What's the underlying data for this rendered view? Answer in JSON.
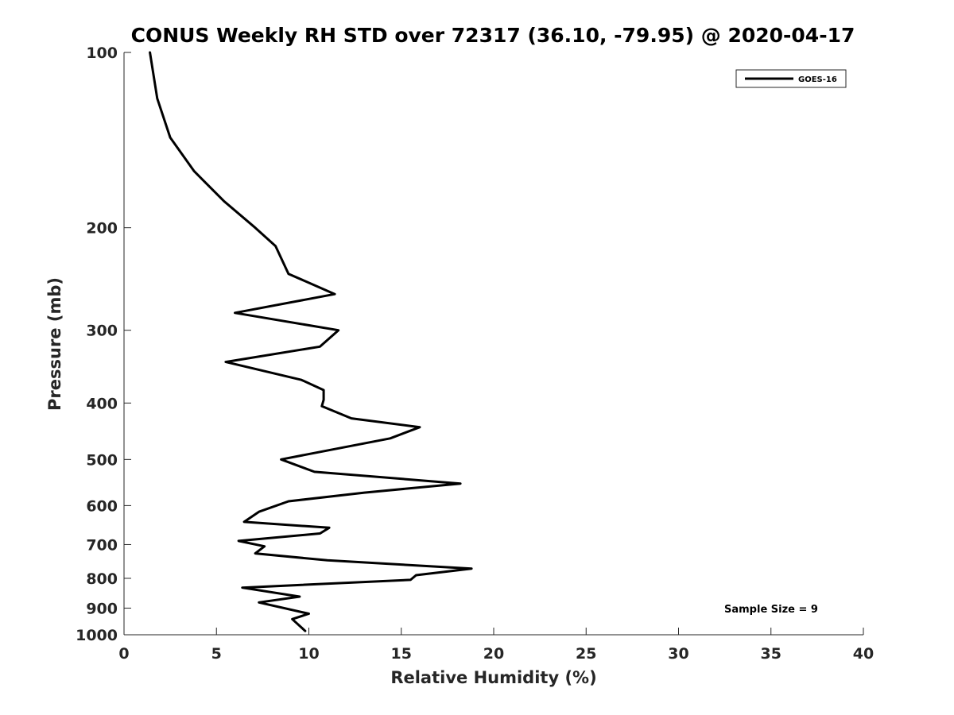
{
  "chart_data": {
    "type": "line",
    "title": "CONUS Weekly RH STD over 72317 (36.10, -79.95) @ 2020-04-17",
    "xlabel": "Relative Humidity (%)",
    "ylabel": "Pressure (mb)",
    "xlim": [
      0,
      40
    ],
    "ylim": [
      100,
      1000
    ],
    "y_scale": "log",
    "y_reversed": true,
    "x_ticks": [
      0,
      5,
      10,
      15,
      20,
      25,
      30,
      35,
      40
    ],
    "y_ticks": [
      100,
      200,
      300,
      400,
      500,
      600,
      700,
      800,
      900,
      1000
    ],
    "grid": false,
    "legend_position": "top-right",
    "annotation": "Sample Size = 9",
    "series": [
      {
        "name": "GOES-16",
        "color": "#000000",
        "x": [
          1.4,
          1.8,
          2.5,
          3.8,
          5.4,
          7.1,
          8.2,
          8.9,
          11.4,
          6.0,
          11.6,
          10.6,
          5.5,
          9.6,
          10.8,
          10.8,
          10.7,
          12.3,
          16.0,
          14.4,
          8.5,
          10.3,
          18.2,
          13.0,
          8.9,
          7.3,
          6.5,
          11.1,
          10.6,
          6.2,
          7.6,
          7.1,
          11.0,
          18.8,
          15.8,
          15.5,
          6.4,
          9.5,
          7.3,
          10.0,
          9.1,
          9.8
        ],
        "y": [
          100,
          120,
          140,
          160,
          180,
          200,
          215,
          240,
          260,
          280,
          300,
          320,
          340,
          365,
          380,
          395,
          405,
          425,
          440,
          460,
          500,
          525,
          550,
          570,
          590,
          615,
          640,
          655,
          670,
          690,
          705,
          725,
          745,
          770,
          790,
          805,
          830,
          860,
          880,
          920,
          940,
          985
        ]
      }
    ]
  }
}
